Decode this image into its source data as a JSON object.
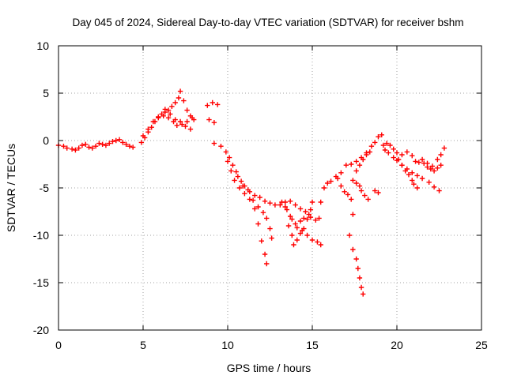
{
  "chart_data": {
    "type": "scatter",
    "title": "Day 045 of 2024, Sidereal Day-to-day VTEC variation (SDTVAR) for receiver bshm",
    "xlabel": "GPS time / hours",
    "ylabel": "SDTVAR / TECUs",
    "xlim": [
      0,
      25
    ],
    "ylim": [
      -20,
      10
    ],
    "xticks": [
      0,
      5,
      10,
      15,
      20,
      25
    ],
    "yticks": [
      -20,
      -15,
      -10,
      -5,
      0,
      5,
      10
    ],
    "grid": true,
    "marker": "+",
    "color": "#ff0000",
    "series": [
      {
        "name": "SDTVAR",
        "points": [
          [
            0.0,
            -0.5
          ],
          [
            0.3,
            -0.6
          ],
          [
            0.5,
            -0.8
          ],
          [
            0.8,
            -0.9
          ],
          [
            1.0,
            -1.0
          ],
          [
            1.2,
            -0.8
          ],
          [
            1.4,
            -0.5
          ],
          [
            1.6,
            -0.4
          ],
          [
            1.8,
            -0.7
          ],
          [
            2.0,
            -0.8
          ],
          [
            2.2,
            -0.6
          ],
          [
            2.4,
            -0.3
          ],
          [
            2.6,
            -0.4
          ],
          [
            2.8,
            -0.5
          ],
          [
            3.0,
            -0.3
          ],
          [
            3.2,
            -0.1
          ],
          [
            3.4,
            0.0
          ],
          [
            3.6,
            0.1
          ],
          [
            3.8,
            -0.2
          ],
          [
            4.0,
            -0.4
          ],
          [
            4.2,
            -0.6
          ],
          [
            4.4,
            -0.7
          ],
          [
            4.9,
            -0.2
          ],
          [
            5.1,
            0.3
          ],
          [
            5.3,
            0.9
          ],
          [
            5.5,
            1.4
          ],
          [
            5.7,
            2.0
          ],
          [
            5.9,
            2.5
          ],
          [
            6.1,
            2.8
          ],
          [
            6.3,
            3.0
          ],
          [
            6.5,
            3.2
          ],
          [
            6.7,
            3.6
          ],
          [
            6.9,
            4.0
          ],
          [
            7.1,
            4.5
          ],
          [
            7.2,
            5.2
          ],
          [
            7.4,
            4.2
          ],
          [
            7.6,
            3.2
          ],
          [
            7.8,
            2.6
          ],
          [
            8.0,
            2.2
          ],
          [
            5.0,
            0.5
          ],
          [
            5.3,
            1.2
          ],
          [
            5.6,
            2.0
          ],
          [
            5.9,
            2.4
          ],
          [
            6.2,
            2.6
          ],
          [
            6.5,
            2.4
          ],
          [
            6.8,
            2.0
          ],
          [
            7.0,
            1.6
          ],
          [
            7.3,
            1.7
          ],
          [
            7.6,
            2.0
          ],
          [
            7.9,
            2.4
          ],
          [
            6.3,
            3.3
          ],
          [
            6.6,
            2.8
          ],
          [
            6.9,
            2.2
          ],
          [
            7.2,
            2.0
          ],
          [
            7.5,
            1.5
          ],
          [
            7.8,
            1.2
          ],
          [
            8.8,
            3.7
          ],
          [
            9.1,
            4.0
          ],
          [
            9.4,
            3.8
          ],
          [
            8.9,
            2.2
          ],
          [
            9.2,
            1.9
          ],
          [
            9.2,
            -0.3
          ],
          [
            9.6,
            -0.6
          ],
          [
            9.9,
            -1.2
          ],
          [
            10.1,
            -1.8
          ],
          [
            10.3,
            -2.6
          ],
          [
            10.5,
            -3.3
          ],
          [
            10.8,
            -4.3
          ],
          [
            11.0,
            -4.8
          ],
          [
            11.3,
            -5.4
          ],
          [
            11.6,
            -5.8
          ],
          [
            11.9,
            -6.0
          ],
          [
            12.2,
            -6.4
          ],
          [
            12.5,
            -6.6
          ],
          [
            12.8,
            -6.8
          ],
          [
            13.1,
            -6.8
          ],
          [
            13.4,
            -6.5
          ],
          [
            13.7,
            -6.4
          ],
          [
            14.0,
            -6.8
          ],
          [
            14.3,
            -7.2
          ],
          [
            14.6,
            -7.5
          ],
          [
            14.9,
            -8.1
          ],
          [
            15.2,
            -8.4
          ],
          [
            15.4,
            -8.2
          ],
          [
            10.0,
            -2.2
          ],
          [
            10.2,
            -3.2
          ],
          [
            10.4,
            -4.2
          ],
          [
            10.7,
            -5.0
          ],
          [
            11.0,
            -5.6
          ],
          [
            11.3,
            -6.2
          ],
          [
            11.6,
            -7.2
          ],
          [
            11.8,
            -8.8
          ],
          [
            12.0,
            -10.6
          ],
          [
            12.2,
            -12.0
          ],
          [
            12.3,
            -13.0
          ],
          [
            10.6,
            -3.8
          ],
          [
            10.9,
            -4.8
          ],
          [
            11.2,
            -5.2
          ],
          [
            11.5,
            -6.3
          ],
          [
            11.8,
            -7.0
          ],
          [
            12.1,
            -7.6
          ],
          [
            12.3,
            -8.2
          ],
          [
            12.5,
            -9.3
          ],
          [
            12.6,
            -10.3
          ],
          [
            13.2,
            -6.5
          ],
          [
            13.5,
            -7.3
          ],
          [
            13.8,
            -8.3
          ],
          [
            14.1,
            -9.2
          ],
          [
            14.4,
            -9.5
          ],
          [
            14.7,
            -10.0
          ],
          [
            15.0,
            -10.5
          ],
          [
            15.3,
            -10.7
          ],
          [
            15.5,
            -11.0
          ],
          [
            13.6,
            -9.0
          ],
          [
            13.8,
            -10.0
          ],
          [
            13.9,
            -11.0
          ],
          [
            14.1,
            -10.5
          ],
          [
            14.3,
            -9.8
          ],
          [
            14.5,
            -9.3
          ],
          [
            14.7,
            -8.3
          ],
          [
            14.9,
            -7.3
          ],
          [
            15.0,
            -6.5
          ],
          [
            13.4,
            -7.0
          ],
          [
            13.7,
            -8.0
          ],
          [
            14.0,
            -8.8
          ],
          [
            14.3,
            -8.5
          ],
          [
            14.5,
            -8.2
          ],
          [
            14.8,
            -7.8
          ],
          [
            15.5,
            -6.5
          ],
          [
            15.7,
            -5.0
          ],
          [
            15.9,
            -4.5
          ],
          [
            16.1,
            -4.3
          ],
          [
            16.4,
            -3.8
          ],
          [
            16.7,
            -3.4
          ],
          [
            17.0,
            -2.6
          ],
          [
            17.3,
            -2.5
          ],
          [
            17.6,
            -2.2
          ],
          [
            17.9,
            -1.8
          ],
          [
            18.2,
            -1.3
          ],
          [
            18.5,
            -0.6
          ],
          [
            18.7,
            -0.2
          ],
          [
            18.9,
            0.4
          ],
          [
            19.1,
            0.6
          ],
          [
            16.5,
            -4.0
          ],
          [
            16.7,
            -4.8
          ],
          [
            16.9,
            -5.4
          ],
          [
            17.1,
            -5.7
          ],
          [
            17.3,
            -6.2
          ],
          [
            17.4,
            -7.8
          ],
          [
            17.4,
            -4.2
          ],
          [
            17.6,
            -3.2
          ],
          [
            17.8,
            -2.6
          ],
          [
            18.0,
            -2.0
          ],
          [
            18.2,
            -1.5
          ],
          [
            18.4,
            -1.2
          ],
          [
            17.6,
            -4.5
          ],
          [
            17.8,
            -4.8
          ],
          [
            17.9,
            -5.3
          ],
          [
            18.1,
            -5.8
          ],
          [
            18.3,
            -6.2
          ],
          [
            18.7,
            -5.3
          ],
          [
            18.9,
            -5.5
          ],
          [
            17.2,
            -10.0
          ],
          [
            17.4,
            -11.5
          ],
          [
            17.6,
            -12.5
          ],
          [
            17.7,
            -13.5
          ],
          [
            17.8,
            -14.5
          ],
          [
            17.9,
            -15.5
          ],
          [
            18.0,
            -16.2
          ],
          [
            19.2,
            -0.5
          ],
          [
            19.4,
            -0.3
          ],
          [
            19.6,
            -0.5
          ],
          [
            19.8,
            -0.9
          ],
          [
            20.0,
            -1.3
          ],
          [
            20.3,
            -1.5
          ],
          [
            20.6,
            -1.2
          ],
          [
            20.9,
            -1.6
          ],
          [
            21.1,
            -2.2
          ],
          [
            21.3,
            -2.3
          ],
          [
            21.5,
            -2.0
          ],
          [
            21.8,
            -2.4
          ],
          [
            22.1,
            -2.7
          ],
          [
            22.4,
            -2.0
          ],
          [
            22.6,
            -1.5
          ],
          [
            22.8,
            -0.8
          ],
          [
            19.3,
            -1.0
          ],
          [
            19.5,
            -1.3
          ],
          [
            19.8,
            -1.8
          ],
          [
            20.0,
            -2.1
          ],
          [
            20.3,
            -2.6
          ],
          [
            20.6,
            -3.0
          ],
          [
            20.9,
            -3.4
          ],
          [
            21.2,
            -3.7
          ],
          [
            21.5,
            -4.0
          ],
          [
            21.9,
            -4.4
          ],
          [
            22.2,
            -4.9
          ],
          [
            22.5,
            -5.3
          ],
          [
            20.1,
            -2.0
          ],
          [
            20.3,
            -2.6
          ],
          [
            20.5,
            -3.2
          ],
          [
            20.7,
            -3.6
          ],
          [
            20.9,
            -4.2
          ],
          [
            21.0,
            -4.6
          ],
          [
            21.2,
            -5.0
          ],
          [
            21.6,
            -2.4
          ],
          [
            21.8,
            -2.8
          ],
          [
            22.0,
            -3.0
          ],
          [
            22.2,
            -3.2
          ],
          [
            22.4,
            -2.9
          ],
          [
            22.6,
            -2.6
          ]
        ]
      }
    ]
  }
}
